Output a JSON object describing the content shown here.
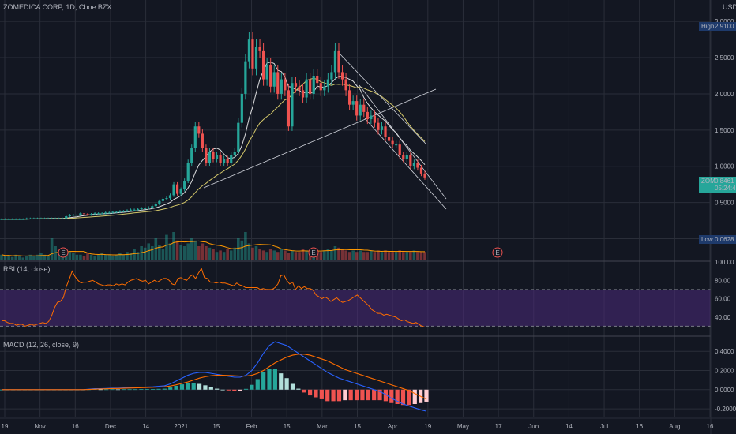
{
  "header": {
    "symbol_line": "ZOMEDICA CORP, 1D, Cboe BZX",
    "currency": "USD"
  },
  "price_badges": {
    "high_label": "High",
    "high_value": "2.9100",
    "low_label": "Low",
    "low_value": "0.0628",
    "last_ticker": "ZOM",
    "last_value": "0.8461",
    "countdown": "05:24:42"
  },
  "colors": {
    "background": "#131722",
    "grid": "#2a2e39",
    "up": "#26a69a",
    "down": "#ef5350",
    "rsi_line": "#ff6d00",
    "rsi_band": "#4a2a7a",
    "macd_line": "#2962ff",
    "signal_line": "#ff6d00",
    "sma_fast": "#ffffff",
    "sma_slow": "#d4c86a",
    "volume_ma": "#ff9800",
    "earnings": "#ef5350"
  },
  "earnings_marker": "E",
  "chart_data": [
    {
      "type": "candlestick",
      "pane": "price",
      "title": "ZOMEDICA CORP, 1D, Cboe BZX",
      "y_ticks": [
        "3.0000",
        "2.5000",
        "2.0000",
        "1.5000",
        "1.0000",
        "0.5000",
        "0.0000"
      ],
      "ylim": [
        -0.3,
        3.1
      ],
      "x_ticks": [
        "19",
        "Nov",
        "16",
        "Dec",
        "14",
        "2021",
        "15",
        "Feb",
        "15",
        "Mar",
        "15",
        "Apr",
        "19",
        "May",
        "17",
        "Jun",
        "14",
        "Jul",
        "16",
        "Aug",
        "16"
      ],
      "high": 2.91,
      "low": 0.0628,
      "last": 0.8461,
      "closes": [
        0.27,
        0.27,
        0.27,
        0.27,
        0.27,
        0.27,
        0.27,
        0.28,
        0.28,
        0.28,
        0.28,
        0.28,
        0.28,
        0.28,
        0.28,
        0.28,
        0.28,
        0.28,
        0.31,
        0.33,
        0.33,
        0.33,
        0.35,
        0.34,
        0.33,
        0.34,
        0.35,
        0.35,
        0.35,
        0.36,
        0.36,
        0.37,
        0.37,
        0.38,
        0.38,
        0.39,
        0.4,
        0.4,
        0.41,
        0.42,
        0.42,
        0.43,
        0.45,
        0.48,
        0.52,
        0.55,
        0.56,
        0.6,
        0.75,
        0.62,
        0.68,
        0.8,
        1.05,
        1.25,
        1.55,
        1.45,
        1.25,
        1.05,
        1.2,
        1.1,
        1.15,
        1.05,
        1.1,
        1.05,
        1.15,
        1.2,
        1.6,
        2.0,
        2.45,
        2.75,
        2.35,
        2.65,
        2.6,
        2.2,
        2.4,
        2.1,
        2.3,
        2.0,
        2.2,
        2.05,
        1.55,
        2.15,
        2.1,
        2.05,
        1.95,
        2.2,
        2.0,
        2.25,
        2.15,
        2.05,
        2.1,
        2.2,
        2.3,
        2.6,
        2.3,
        2.2,
        2.05,
        1.85,
        1.9,
        1.7,
        1.85,
        1.75,
        1.65,
        1.7,
        1.6,
        1.5,
        1.55,
        1.4,
        1.35,
        1.3,
        1.3,
        1.15,
        1.1,
        1.15,
        1.0,
        1.05,
        0.98,
        0.9,
        0.8461
      ]
    },
    {
      "type": "line",
      "pane": "rsi",
      "title": "RSI (14, close)",
      "y_ticks": [
        "100.00",
        "80.00",
        "60.00",
        "40.00"
      ],
      "ylim": [
        20,
        100
      ],
      "bands": [
        30,
        70
      ],
      "values": [
        36,
        36,
        34,
        33,
        33,
        31,
        32,
        32,
        30,
        31,
        32,
        31,
        32,
        33,
        34,
        33,
        35,
        41,
        50,
        56,
        57,
        61,
        73,
        81,
        90,
        84,
        80,
        77,
        78,
        78,
        79,
        80,
        78,
        76,
        75,
        74,
        75,
        75,
        74,
        76,
        75,
        76,
        75,
        78,
        80,
        81,
        82,
        80,
        79,
        80,
        76,
        78,
        80,
        78,
        80,
        82,
        82,
        80,
        76,
        75,
        82,
        83,
        81,
        80,
        84,
        86,
        82,
        88,
        93,
        83,
        82,
        78,
        78,
        77,
        78,
        77,
        77,
        76,
        75,
        74,
        77,
        75,
        74,
        72,
        72,
        72,
        72,
        72,
        70,
        71,
        70,
        70,
        70,
        72,
        76,
        85,
        86,
        80,
        76,
        78,
        70,
        74,
        71,
        73,
        71,
        71,
        69,
        64,
        62,
        60,
        62,
        60,
        57,
        59,
        61,
        58,
        56,
        57,
        58,
        60,
        62,
        64,
        61,
        58,
        55,
        52,
        48,
        46,
        44,
        44,
        42,
        43,
        42,
        41,
        40,
        38,
        36,
        37,
        35,
        34,
        33,
        34,
        32,
        30,
        29
      ]
    },
    {
      "type": "line",
      "pane": "macd",
      "title": "MACD (12, 26, close, 9)",
      "y_ticks": [
        "0.4000",
        "0.2000",
        "0.0000",
        "-0.2000"
      ],
      "ylim": [
        -0.29,
        0.55
      ],
      "series": [
        {
          "values": [
            0,
            0,
            0,
            0,
            0,
            0,
            0,
            0,
            0,
            0,
            0,
            0,
            0,
            0,
            0,
            0.005,
            0.01,
            0.01,
            0.012,
            0.015,
            0.015,
            0.018,
            0.02,
            0.022,
            0.025,
            0.028,
            0.03,
            0.035,
            0.04,
            0.06,
            0.09,
            0.12,
            0.15,
            0.17,
            0.18,
            0.18,
            0.17,
            0.16,
            0.15,
            0.14,
            0.13,
            0.13,
            0.15,
            0.2,
            0.28,
            0.38,
            0.46,
            0.5,
            0.48,
            0.46,
            0.42,
            0.38,
            0.34,
            0.3,
            0.26,
            0.22,
            0.18,
            0.15,
            0.12,
            0.1,
            0.08,
            0.06,
            0.04,
            0.02,
            0.0,
            -0.02,
            -0.05,
            -0.09,
            -0.12,
            -0.15,
            -0.17,
            -0.19,
            -0.21,
            -0.225
          ]
        },
        {
          "values": [
            0,
            0,
            0,
            0,
            0,
            0,
            0,
            0,
            0,
            0,
            0,
            0,
            0,
            0,
            0,
            0.002,
            0.005,
            0.007,
            0.009,
            0.011,
            0.012,
            0.014,
            0.016,
            0.018,
            0.02,
            0.022,
            0.024,
            0.027,
            0.03,
            0.038,
            0.05,
            0.065,
            0.08,
            0.1,
            0.12,
            0.135,
            0.145,
            0.15,
            0.15,
            0.148,
            0.145,
            0.142,
            0.142,
            0.15,
            0.17,
            0.2,
            0.24,
            0.28,
            0.31,
            0.34,
            0.36,
            0.37,
            0.37,
            0.36,
            0.34,
            0.32,
            0.3,
            0.27,
            0.24,
            0.21,
            0.19,
            0.17,
            0.15,
            0.13,
            0.11,
            0.09,
            0.07,
            0.05,
            0.03,
            0.01,
            -0.01,
            -0.04,
            -0.07,
            -0.1
          ]
        },
        {
          "values": [
            0,
            0,
            0,
            0,
            0,
            0,
            0,
            0,
            0,
            0,
            0,
            0,
            0,
            0,
            0,
            0.003,
            0.005,
            0.003,
            0.003,
            0.004,
            0.003,
            0.004,
            0.004,
            0.004,
            0.005,
            0.006,
            0.006,
            0.008,
            0.01,
            0.022,
            0.04,
            0.055,
            0.07,
            0.07,
            0.06,
            0.045,
            0.025,
            0.01,
            0.0,
            -0.008,
            -0.015,
            -0.012,
            0.008,
            0.05,
            0.11,
            0.18,
            0.22,
            0.22,
            0.17,
            0.12,
            0.06,
            0.01,
            -0.03,
            -0.06,
            -0.08,
            -0.1,
            -0.12,
            -0.12,
            -0.12,
            -0.11,
            -0.11,
            -0.11,
            -0.11,
            -0.11,
            -0.11,
            -0.11,
            -0.12,
            -0.14,
            -0.15,
            -0.16,
            -0.16,
            -0.15,
            -0.14,
            -0.125
          ]
        }
      ]
    },
    {
      "type": "bar",
      "pane": "volume",
      "values": [
        0.2,
        0.15,
        0.18,
        0.12,
        0.2,
        0.15,
        0.1,
        0.15,
        0.2,
        0.15,
        0.2,
        0.25,
        0.2,
        0.15,
        0.8,
        0.5,
        0.3,
        0.25,
        0.2,
        0.3,
        0.25,
        0.2,
        0.2,
        0.15,
        0.25,
        0.2,
        0.15,
        0.2,
        0.25,
        0.2,
        0.2,
        0.15,
        0.2,
        0.25,
        0.2,
        0.3,
        0.25,
        0.4,
        0.3,
        0.5,
        0.45,
        0.6,
        0.5,
        0.8,
        0.55,
        0.4,
        0.9,
        0.6,
        1.0,
        0.7,
        0.55,
        0.5,
        0.6,
        0.8,
        0.7,
        0.5,
        0.6,
        0.5,
        0.45,
        0.4,
        0.3,
        0.35,
        0.3,
        0.4,
        0.35,
        0.45,
        0.8,
        0.7,
        1.0,
        0.6,
        0.45,
        0.5,
        0.4,
        0.35,
        0.3,
        0.4,
        0.35,
        0.3,
        0.4,
        0.35,
        0.25,
        0.35,
        0.3,
        0.3,
        0.4,
        0.35,
        0.3,
        0.4,
        0.35,
        0.3,
        0.35,
        0.4,
        0.35,
        0.5,
        0.45,
        0.4,
        0.35,
        0.3,
        0.35,
        0.3,
        0.35,
        0.3,
        0.3,
        0.35,
        0.3,
        0.35,
        0.3,
        0.35,
        0.3,
        0.3,
        0.3,
        0.35,
        0.3,
        0.3,
        0.3,
        0.35,
        0.3,
        0.3,
        0.3
      ]
    }
  ]
}
